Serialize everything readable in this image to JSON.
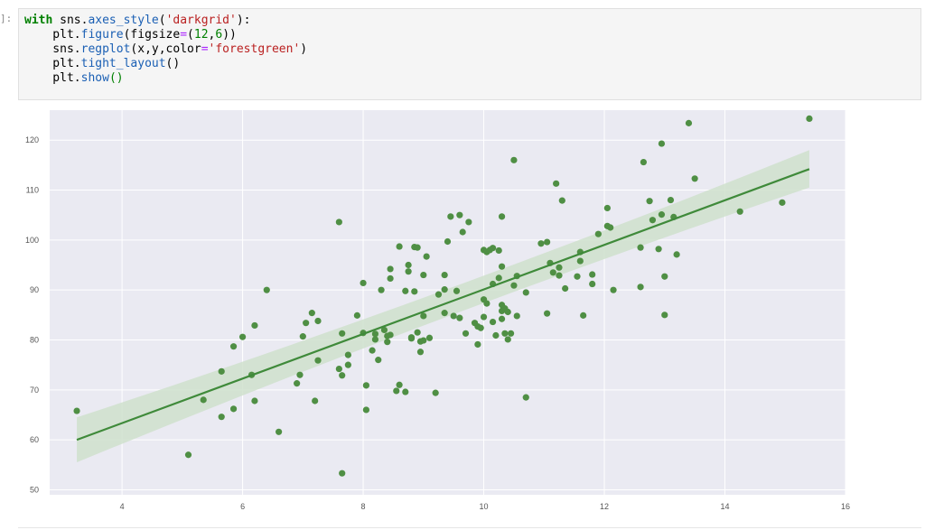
{
  "cell": {
    "prompt": "]:",
    "lines": [
      [
        {
          "t": "with",
          "c": "kw"
        },
        {
          "t": " sns.",
          "c": ""
        },
        {
          "t": "axes_style",
          "c": "fn"
        },
        {
          "t": "(",
          "c": ""
        },
        {
          "t": "'darkgrid'",
          "c": "str"
        },
        {
          "t": "):",
          "c": ""
        }
      ],
      [
        {
          "t": "    plt.",
          "c": ""
        },
        {
          "t": "figure",
          "c": "fn"
        },
        {
          "t": "(figsize",
          "c": ""
        },
        {
          "t": "=",
          "c": "op"
        },
        {
          "t": "(",
          "c": ""
        },
        {
          "t": "12",
          "c": "num"
        },
        {
          "t": ",",
          "c": ""
        },
        {
          "t": "6",
          "c": "num"
        },
        {
          "t": "))",
          "c": ""
        }
      ],
      [
        {
          "t": "    sns.",
          "c": ""
        },
        {
          "t": "regplot",
          "c": "fn"
        },
        {
          "t": "(x,y,color",
          "c": ""
        },
        {
          "t": "=",
          "c": "op"
        },
        {
          "t": "'forestgreen'",
          "c": "str"
        },
        {
          "t": ")",
          "c": ""
        }
      ],
      [
        {
          "t": "    plt.",
          "c": ""
        },
        {
          "t": "tight_layout",
          "c": "fn"
        },
        {
          "t": "()",
          "c": ""
        }
      ],
      [
        {
          "t": "    plt.",
          "c": ""
        },
        {
          "t": "show",
          "c": "fn"
        },
        {
          "t": "()",
          "c": "paren"
        }
      ]
    ]
  },
  "chart_data": {
    "type": "scatter",
    "style": "darkgrid",
    "title": "",
    "xlabel": "",
    "ylabel": "",
    "xlim": [
      2.8,
      16
    ],
    "ylim": [
      49,
      126
    ],
    "xticks": [
      4,
      6,
      8,
      10,
      12,
      14,
      16
    ],
    "yticks": [
      50,
      60,
      70,
      80,
      90,
      100,
      110,
      120
    ],
    "grid": true,
    "legend": "none",
    "colors": {
      "points": "#4f8f44",
      "line": "#3f8a3a",
      "band": "#cfe0cd",
      "background": "#eaeaf2",
      "grid": "#ffffff",
      "tick_text": "#555555"
    },
    "regression": {
      "x0": 3.25,
      "y0": 60.0,
      "x1": 15.4,
      "y1": 114.2,
      "ci_low": [
        55.5,
        110.5
      ],
      "ci_high": [
        64.5,
        118.0
      ]
    },
    "points": [
      [
        3.25,
        65.8
      ],
      [
        5.1,
        57
      ],
      [
        5.35,
        68
      ],
      [
        5.65,
        73.7
      ],
      [
        5.65,
        64.6
      ],
      [
        5.85,
        66.2
      ],
      [
        5.85,
        78.7
      ],
      [
        6.0,
        80.6
      ],
      [
        6.15,
        73
      ],
      [
        6.2,
        82.9
      ],
      [
        6.2,
        67.8
      ],
      [
        6.4,
        90
      ],
      [
        6.6,
        61.6
      ],
      [
        6.9,
        71.3
      ],
      [
        6.95,
        73
      ],
      [
        7.0,
        80.7
      ],
      [
        7.05,
        83.4
      ],
      [
        7.15,
        85.4
      ],
      [
        7.2,
        67.8
      ],
      [
        7.25,
        83.8
      ],
      [
        7.25,
        75.9
      ],
      [
        7.6,
        103.6
      ],
      [
        7.6,
        74.2
      ],
      [
        7.65,
        72.9
      ],
      [
        7.65,
        81.3
      ],
      [
        7.65,
        53.3
      ],
      [
        7.75,
        77
      ],
      [
        7.75,
        75
      ],
      [
        7.9,
        84.9
      ],
      [
        8.0,
        91.4
      ],
      [
        8.0,
        81.4
      ],
      [
        8.05,
        70.9
      ],
      [
        8.05,
        66
      ],
      [
        8.15,
        77.9
      ],
      [
        8.2,
        80.1
      ],
      [
        8.2,
        81.2
      ],
      [
        8.25,
        76
      ],
      [
        8.3,
        90
      ],
      [
        8.35,
        82
      ],
      [
        8.4,
        79.6
      ],
      [
        8.4,
        80.8
      ],
      [
        8.45,
        81
      ],
      [
        8.45,
        92.3
      ],
      [
        8.45,
        94.2
      ],
      [
        8.55,
        69.8
      ],
      [
        8.6,
        71
      ],
      [
        8.6,
        98.7
      ],
      [
        8.7,
        69.6
      ],
      [
        8.7,
        89.8
      ],
      [
        8.75,
        95
      ],
      [
        8.75,
        93.7
      ],
      [
        8.8,
        80.3
      ],
      [
        8.8,
        80.5
      ],
      [
        8.85,
        98.6
      ],
      [
        8.85,
        89.7
      ],
      [
        8.9,
        98.5
      ],
      [
        8.9,
        81.5
      ],
      [
        8.95,
        79.7
      ],
      [
        8.95,
        77.6
      ],
      [
        9.0,
        84.8
      ],
      [
        9.0,
        93
      ],
      [
        9.0,
        79.9
      ],
      [
        9.05,
        96.7
      ],
      [
        9.1,
        80.4
      ],
      [
        9.2,
        69.4
      ],
      [
        9.25,
        89.1
      ],
      [
        9.35,
        85.4
      ],
      [
        9.35,
        90.1
      ],
      [
        9.35,
        93
      ],
      [
        9.4,
        99.7
      ],
      [
        9.45,
        104.7
      ],
      [
        9.5,
        84.8
      ],
      [
        9.55,
        89.8
      ],
      [
        9.6,
        105
      ],
      [
        9.6,
        84.4
      ],
      [
        9.65,
        101.6
      ],
      [
        9.7,
        81.3
      ],
      [
        9.75,
        103.6
      ],
      [
        9.85,
        83.4
      ],
      [
        9.9,
        82.7
      ],
      [
        9.9,
        79.1
      ],
      [
        9.95,
        82.4
      ],
      [
        10.0,
        88.1
      ],
      [
        10.0,
        84.6
      ],
      [
        10.0,
        98
      ],
      [
        10.05,
        97.6
      ],
      [
        10.05,
        87.3
      ],
      [
        10.1,
        98
      ],
      [
        10.15,
        91.2
      ],
      [
        10.15,
        98.4
      ],
      [
        10.15,
        83.6
      ],
      [
        10.2,
        80.9
      ],
      [
        10.25,
        92.4
      ],
      [
        10.25,
        97.9
      ],
      [
        10.3,
        94.7
      ],
      [
        10.3,
        104.7
      ],
      [
        10.3,
        84.2
      ],
      [
        10.3,
        85.8
      ],
      [
        10.3,
        87
      ],
      [
        10.35,
        86.3
      ],
      [
        10.35,
        81.3
      ],
      [
        10.4,
        85.6
      ],
      [
        10.4,
        80.1
      ],
      [
        10.45,
        81.3
      ],
      [
        10.5,
        116
      ],
      [
        10.5,
        90.9
      ],
      [
        10.55,
        92.8
      ],
      [
        10.55,
        84.8
      ],
      [
        10.7,
        68.5
      ],
      [
        10.7,
        89.5
      ],
      [
        10.95,
        99.3
      ],
      [
        11.05,
        99.6
      ],
      [
        11.05,
        85.3
      ],
      [
        11.1,
        95.4
      ],
      [
        11.15,
        93.5
      ],
      [
        11.2,
        111.3
      ],
      [
        11.25,
        94.5
      ],
      [
        11.25,
        92.9
      ],
      [
        11.3,
        107.9
      ],
      [
        11.35,
        90.3
      ],
      [
        11.55,
        92.7
      ],
      [
        11.6,
        97.6
      ],
      [
        11.6,
        95.8
      ],
      [
        11.65,
        84.9
      ],
      [
        11.8,
        91.2
      ],
      [
        11.8,
        93.1
      ],
      [
        11.9,
        101.2
      ],
      [
        12.05,
        106.4
      ],
      [
        12.05,
        102.8
      ],
      [
        12.1,
        102.5
      ],
      [
        12.15,
        90
      ],
      [
        12.6,
        98.5
      ],
      [
        12.6,
        90.6
      ],
      [
        12.65,
        115.6
      ],
      [
        12.75,
        107.8
      ],
      [
        12.8,
        104
      ],
      [
        12.9,
        98.2
      ],
      [
        12.95,
        119.3
      ],
      [
        12.95,
        105.1
      ],
      [
        13.0,
        92.7
      ],
      [
        13.0,
        85
      ],
      [
        13.1,
        108
      ],
      [
        13.15,
        104.6
      ],
      [
        13.2,
        97.1
      ],
      [
        13.4,
        123.4
      ],
      [
        13.5,
        112.3
      ],
      [
        14.25,
        105.7
      ],
      [
        14.95,
        107.5
      ],
      [
        15.4,
        124.3
      ]
    ]
  }
}
